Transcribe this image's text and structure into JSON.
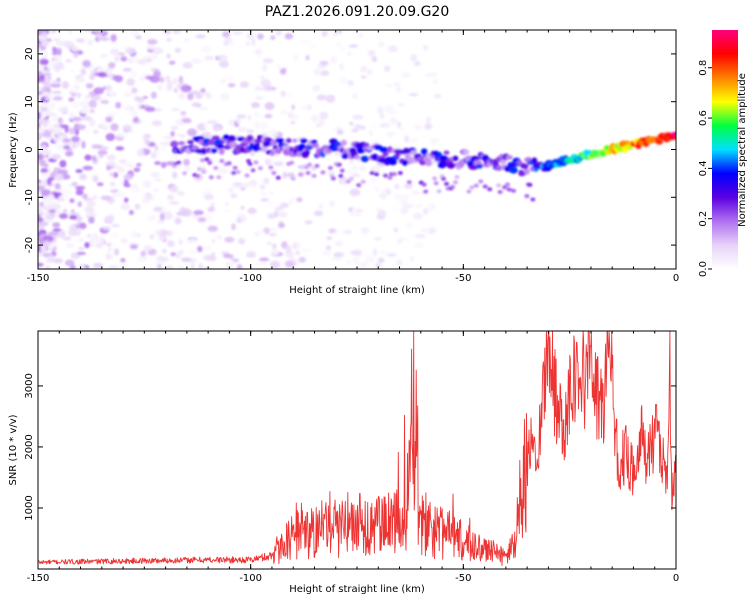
{
  "title": "PAZ1.2026.091.20.09.G20",
  "chart_data": [
    {
      "type": "heatmap",
      "title": "PAZ1.2026.091.20.09.G20",
      "xlabel": "Height of straight line (km)",
      "ylabel": "Frequency (Hz)",
      "xlim": [
        -150,
        0
      ],
      "ylim": [
        -25,
        25
      ],
      "xticks": [
        -150,
        -100,
        -50,
        0
      ],
      "yticks": [
        -20,
        -10,
        0,
        10,
        20
      ],
      "xtick_labels": [
        "-150",
        "-100",
        "-50",
        "0"
      ],
      "ytick_labels": [
        "-20",
        "-10",
        "0",
        "10",
        "20"
      ],
      "colorbar": {
        "label": "Normalized spectral amplitude",
        "range": [
          0,
          0.95
        ],
        "ticks": [
          0.0,
          0.2,
          0.4,
          0.6,
          0.8
        ],
        "tick_labels": [
          "0.0",
          "0.2",
          "0.4",
          "0.6",
          "0.8"
        ],
        "colors": [
          "#ffffff",
          "#e6d2f8",
          "#b070f0",
          "#5a00e0",
          "#0000ff",
          "#00e0ff",
          "#00ff40",
          "#ffff00",
          "#ff8000",
          "#ff0000",
          "#ff0080"
        ]
      },
      "ridge": {
        "name": "signal frequency trace",
        "x": [
          -118,
          -100,
          -80,
          -70,
          -60,
          -50,
          -40,
          -33,
          -20,
          -10,
          0
        ],
        "y": [
          1,
          1,
          0,
          -1,
          -2,
          -2,
          -3,
          -4,
          -1,
          1,
          3
        ]
      }
    },
    {
      "type": "line",
      "xlabel": "Height of straight line (km)",
      "ylabel": "SNR (10 * v/v)",
      "xlim": [
        -150,
        0
      ],
      "ylim": [
        0,
        3900
      ],
      "xticks": [
        -150,
        -100,
        -50,
        0
      ],
      "yticks": [
        1000,
        2000,
        3000
      ],
      "xtick_labels": [
        "-150",
        "-100",
        "-50",
        "0"
      ],
      "ytick_labels": [
        "1000",
        "2000",
        "3000"
      ],
      "color": "#ee3333",
      "series": [
        {
          "name": "SNR",
          "x": [
            -150,
            -140,
            -130,
            -120,
            -110,
            -100,
            -95,
            -92,
            -90,
            -85,
            -80,
            -75,
            -70,
            -65,
            -63,
            -62,
            -60,
            -55,
            -50,
            -45,
            -40,
            -38,
            -36,
            -35,
            -34,
            -33,
            -32,
            -31,
            -30,
            -29,
            -28,
            -27,
            -26,
            -25,
            -24,
            -23,
            -22,
            -21,
            -20,
            -19,
            -18,
            -17,
            -16,
            -15,
            -14,
            -13,
            -12,
            -11,
            -10,
            -9,
            -8,
            -7,
            -6,
            -5,
            -4,
            -3,
            -2,
            -1.5,
            -1,
            0
          ],
          "y": [
            110,
            120,
            130,
            140,
            150,
            150,
            220,
            400,
            550,
            620,
            700,
            750,
            700,
            750,
            1200,
            3250,
            800,
            600,
            450,
            330,
            180,
            450,
            1350,
            1800,
            2000,
            1950,
            2400,
            2950,
            3900,
            3200,
            2700,
            2400,
            2500,
            2950,
            3400,
            3050,
            3500,
            2900,
            3900,
            2900,
            2750,
            2600,
            3900,
            2950,
            2050,
            1600,
            1950,
            1750,
            1650,
            1900,
            2150,
            1800,
            2100,
            2100,
            2150,
            1750,
            1350,
            3650,
            1200,
            1550
          ]
        }
      ]
    }
  ]
}
